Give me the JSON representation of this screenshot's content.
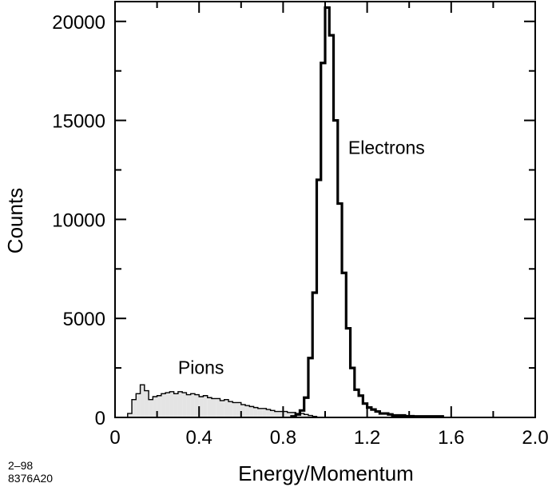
{
  "chart_data": {
    "type": "histogram",
    "title": "",
    "xlabel": "Energy/Momentum",
    "ylabel": "Counts",
    "xlim": [
      0,
      2.0
    ],
    "ylim": [
      0,
      21000
    ],
    "x_ticks": [
      0,
      0.4,
      0.8,
      1.2,
      1.6,
      2.0
    ],
    "x_tick_labels": [
      "0",
      "0.4",
      "0.8",
      "1.2",
      "1.6",
      "2.0"
    ],
    "y_ticks": [
      0,
      5000,
      10000,
      15000,
      20000
    ],
    "y_tick_labels": [
      "0",
      "5000",
      "10000",
      "15000",
      "20000"
    ],
    "grid": false,
    "legend": "none",
    "bin_width": 0.02,
    "series": [
      {
        "name": "Pions",
        "style": "filled",
        "fill_color": "#e4e4e4",
        "line_color": "#000000",
        "bin_edges": [
          0.06,
          0.08,
          0.1,
          0.12,
          0.14,
          0.16,
          0.18,
          0.2,
          0.22,
          0.24,
          0.26,
          0.28,
          0.3,
          0.32,
          0.34,
          0.36,
          0.38,
          0.4,
          0.42,
          0.44,
          0.46,
          0.48,
          0.5,
          0.52,
          0.54,
          0.56,
          0.58,
          0.6,
          0.62,
          0.64,
          0.66,
          0.68,
          0.7,
          0.72,
          0.74,
          0.76,
          0.78,
          0.8,
          0.82,
          0.84,
          0.86,
          0.88,
          0.9,
          0.92,
          0.94,
          0.96
        ],
        "values": [
          200,
          900,
          1200,
          1650,
          1350,
          900,
          1050,
          1100,
          1200,
          1250,
          1300,
          1200,
          1300,
          1250,
          1150,
          1200,
          1150,
          1050,
          1100,
          1000,
          950,
          950,
          850,
          900,
          800,
          750,
          750,
          650,
          600,
          550,
          500,
          450,
          450,
          400,
          350,
          300,
          300,
          300,
          250,
          250,
          200,
          200,
          150,
          100,
          50
        ]
      },
      {
        "name": "Electrons",
        "style": "line",
        "line_color": "#000000",
        "bin_edges": [
          0.84,
          0.86,
          0.88,
          0.9,
          0.92,
          0.94,
          0.96,
          0.98,
          1.0,
          1.02,
          1.04,
          1.06,
          1.08,
          1.1,
          1.12,
          1.14,
          1.16,
          1.18,
          1.2,
          1.22,
          1.24,
          1.26,
          1.28,
          1.3,
          1.32,
          1.34,
          1.36,
          1.38,
          1.4,
          1.42,
          1.44,
          1.46,
          1.48,
          1.5,
          1.52,
          1.54,
          1.56
        ],
        "values": [
          50,
          150,
          350,
          1000,
          3000,
          6300,
          12000,
          17900,
          20700,
          19300,
          15000,
          10800,
          7300,
          4500,
          2500,
          1400,
          1100,
          700,
          500,
          400,
          300,
          200,
          200,
          150,
          100,
          100,
          100,
          60,
          60,
          50,
          50,
          50,
          50,
          50,
          50,
          50
        ]
      }
    ],
    "annotations": [
      {
        "text": "Electrons",
        "x": 1.11,
        "y": 13300
      },
      {
        "text": "Pions",
        "x": 0.3,
        "y": 2200
      }
    ]
  },
  "figure_note": {
    "line1": "2–98",
    "line2": "8376A20"
  }
}
